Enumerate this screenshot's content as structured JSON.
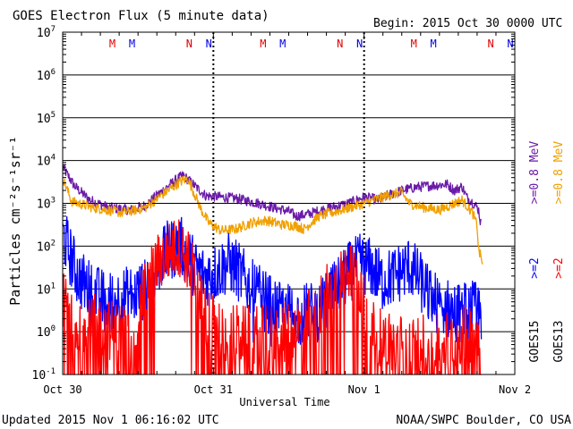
{
  "chart_data": {
    "type": "line",
    "title": "GOES Electron Flux (5 minute data)",
    "begin_label": "Begin: 2015 Oct 30 0000 UTC",
    "ylabel": "Particles cm⁻²s⁻¹sr⁻¹",
    "xlabel": "Universal Time",
    "yscale": "log",
    "ylim": [
      0.1,
      10000000
    ],
    "y_ticks": [
      {
        "value": 0.1,
        "base": "10",
        "exp": "-1"
      },
      {
        "value": 1,
        "base": "10",
        "exp": "0"
      },
      {
        "value": 10,
        "base": "10",
        "exp": "1"
      },
      {
        "value": 100,
        "base": "10",
        "exp": "2"
      },
      {
        "value": 1000,
        "base": "10",
        "exp": "3"
      },
      {
        "value": 10000,
        "base": "10",
        "exp": "4"
      },
      {
        "value": 100000,
        "base": "10",
        "exp": "5"
      },
      {
        "value": 1000000,
        "base": "10",
        "exp": "6"
      },
      {
        "value": 10000000,
        "base": "10",
        "exp": "7"
      }
    ],
    "x_unit": "days since 2015 Oct 30 0000 UTC",
    "xlim": [
      0,
      3
    ],
    "x_ticks": [
      {
        "value": 0,
        "label": "Oct 30"
      },
      {
        "value": 1,
        "label": "Oct 31"
      },
      {
        "value": 2,
        "label": "Nov 1"
      },
      {
        "value": 3,
        "label": "Nov 2"
      }
    ],
    "threshold": {
      "value": 1000,
      "style": "dashed"
    },
    "markers": [
      {
        "t": 0.33,
        "label": "M",
        "color": "#e00000"
      },
      {
        "t": 0.46,
        "label": "M",
        "color": "#0000e0"
      },
      {
        "t": 0.84,
        "label": "N",
        "color": "#e00000"
      },
      {
        "t": 0.97,
        "label": "N",
        "color": "#0000e0"
      },
      {
        "t": 1.33,
        "label": "M",
        "color": "#e00000"
      },
      {
        "t": 1.46,
        "label": "M",
        "color": "#0000e0"
      },
      {
        "t": 1.84,
        "label": "N",
        "color": "#e00000"
      },
      {
        "t": 1.97,
        "label": "N",
        "color": "#0000e0"
      },
      {
        "t": 2.33,
        "label": "M",
        "color": "#e00000"
      },
      {
        "t": 2.46,
        "label": "M",
        "color": "#0000e0"
      },
      {
        "t": 2.84,
        "label": "N",
        "color": "#e00000"
      },
      {
        "t": 2.97,
        "label": "N",
        "color": "#0000e0"
      }
    ],
    "series": [
      {
        "name": "GOES15 >=0.8 MeV",
        "color": "#6a1aa8",
        "noise": 0.02,
        "floor": 0.1,
        "points": [
          [
            0,
            7000
          ],
          [
            0.08,
            2500
          ],
          [
            0.18,
            1200
          ],
          [
            0.3,
            800
          ],
          [
            0.45,
            700
          ],
          [
            0.55,
            900
          ],
          [
            0.65,
            1800
          ],
          [
            0.75,
            3500
          ],
          [
            0.8,
            4500
          ],
          [
            0.88,
            2500
          ],
          [
            0.95,
            1500
          ],
          [
            1.05,
            1400
          ],
          [
            1.15,
            1300
          ],
          [
            1.3,
            1000
          ],
          [
            1.4,
            800
          ],
          [
            1.5,
            650
          ],
          [
            1.55,
            500
          ],
          [
            1.62,
            550
          ],
          [
            1.75,
            750
          ],
          [
            1.9,
            1000
          ],
          [
            2.0,
            1400
          ],
          [
            2.1,
            1200
          ],
          [
            2.15,
            1500
          ],
          [
            2.25,
            2000
          ],
          [
            2.35,
            2400
          ],
          [
            2.45,
            2600
          ],
          [
            2.55,
            2800
          ],
          [
            2.6,
            2000
          ],
          [
            2.65,
            2500
          ],
          [
            2.68,
            1400
          ],
          [
            2.74,
            900
          ],
          [
            2.76,
            700
          ],
          [
            2.77,
            400
          ],
          [
            2.78,
            300
          ]
        ]
      },
      {
        "name": "GOES13 >=0.8 MeV",
        "color": "#f0a000",
        "noise": 0.02,
        "floor": 0.1,
        "points": [
          [
            0,
            4000
          ],
          [
            0.06,
            1100
          ],
          [
            0.2,
            800
          ],
          [
            0.4,
            600
          ],
          [
            0.55,
            800
          ],
          [
            0.65,
            1500
          ],
          [
            0.78,
            3200
          ],
          [
            0.83,
            3800
          ],
          [
            0.88,
            1500
          ],
          [
            0.92,
            700
          ],
          [
            0.97,
            350
          ],
          [
            1.05,
            230
          ],
          [
            1.15,
            250
          ],
          [
            1.25,
            350
          ],
          [
            1.35,
            400
          ],
          [
            1.45,
            320
          ],
          [
            1.55,
            300
          ],
          [
            1.6,
            250
          ],
          [
            1.7,
            500
          ],
          [
            1.85,
            700
          ],
          [
            2.0,
            1000
          ],
          [
            2.15,
            1500
          ],
          [
            2.25,
            1800
          ],
          [
            2.3,
            1000
          ],
          [
            2.4,
            800
          ],
          [
            2.5,
            700
          ],
          [
            2.6,
            1000
          ],
          [
            2.65,
            1200
          ],
          [
            2.72,
            600
          ],
          [
            2.75,
            300
          ],
          [
            2.76,
            80
          ],
          [
            2.78,
            50
          ],
          [
            2.79,
            30
          ]
        ]
      },
      {
        "name": "GOES15 >=2 MeV",
        "color": "#0000ff",
        "noise": 0.12,
        "floor": 0.1,
        "points": [
          [
            0,
            200
          ],
          [
            0.05,
            60
          ],
          [
            0.1,
            20
          ],
          [
            0.15,
            12
          ],
          [
            0.25,
            6
          ],
          [
            0.3,
            5
          ],
          [
            0.45,
            7
          ],
          [
            0.55,
            10
          ],
          [
            0.62,
            30
          ],
          [
            0.7,
            80
          ],
          [
            0.78,
            100
          ],
          [
            0.83,
            60
          ],
          [
            0.88,
            30
          ],
          [
            0.95,
            20
          ],
          [
            1.02,
            25
          ],
          [
            1.1,
            40
          ],
          [
            1.15,
            30
          ],
          [
            1.25,
            10
          ],
          [
            1.35,
            5
          ],
          [
            1.45,
            3
          ],
          [
            1.55,
            2.5
          ],
          [
            1.7,
            3
          ],
          [
            1.8,
            8
          ],
          [
            1.9,
            25
          ],
          [
            1.98,
            40
          ],
          [
            2.05,
            30
          ],
          [
            2.12,
            15
          ],
          [
            2.2,
            20
          ],
          [
            2.3,
            35
          ],
          [
            2.35,
            20
          ],
          [
            2.42,
            8
          ],
          [
            2.5,
            4
          ],
          [
            2.6,
            3
          ],
          [
            2.7,
            3
          ],
          [
            2.78,
            3
          ]
        ]
      },
      {
        "name": "GOES13 >=2 MeV",
        "color": "#ff0000",
        "noise": 0.12,
        "floor": 0.1,
        "dropouts": true,
        "points": [
          [
            0,
            5
          ],
          [
            0.05,
            3
          ],
          [
            0.1,
            2
          ],
          [
            0.2,
            1.5
          ],
          [
            0.35,
            1
          ],
          [
            0.45,
            1
          ],
          [
            0.5,
            3
          ],
          [
            0.58,
            20
          ],
          [
            0.65,
            50
          ],
          [
            0.72,
            80
          ],
          [
            0.78,
            100
          ],
          [
            0.83,
            50
          ],
          [
            0.88,
            15
          ],
          [
            0.92,
            5
          ],
          [
            0.96,
            2
          ],
          [
            1.05,
            1
          ],
          [
            1.2,
            0.8
          ],
          [
            1.35,
            0.8
          ],
          [
            1.5,
            1
          ],
          [
            1.6,
            1.5
          ],
          [
            1.68,
            3
          ],
          [
            1.75,
            8
          ],
          [
            1.83,
            20
          ],
          [
            1.9,
            35
          ],
          [
            1.95,
            20
          ],
          [
            2.0,
            5
          ],
          [
            2.05,
            1
          ],
          [
            2.2,
            0.5
          ],
          [
            2.35,
            0.5
          ],
          [
            2.5,
            0.6
          ],
          [
            2.6,
            0.7
          ],
          [
            2.7,
            1
          ],
          [
            2.78,
            1
          ]
        ]
      }
    ],
    "right_legend": [
      {
        "label": ">=0.8 MeV",
        "color": "#6a1aa8",
        "group": "upper"
      },
      {
        "label": ">=0.8 MeV",
        "color": "#f0a000",
        "group": "upper"
      },
      {
        "label": ">=2",
        "color": "#0000ff",
        "group": "lower"
      },
      {
        "label": ">=2",
        "color": "#ff0000",
        "group": "lower"
      },
      {
        "label": "GOES15",
        "color": "#000000",
        "group": "sat"
      },
      {
        "label": "GOES13",
        "color": "#000000",
        "group": "sat"
      }
    ]
  },
  "footer": {
    "updated": "Updated 2015 Nov  1 06:16:02 UTC",
    "credit": "NOAA/SWPC Boulder, CO USA"
  }
}
